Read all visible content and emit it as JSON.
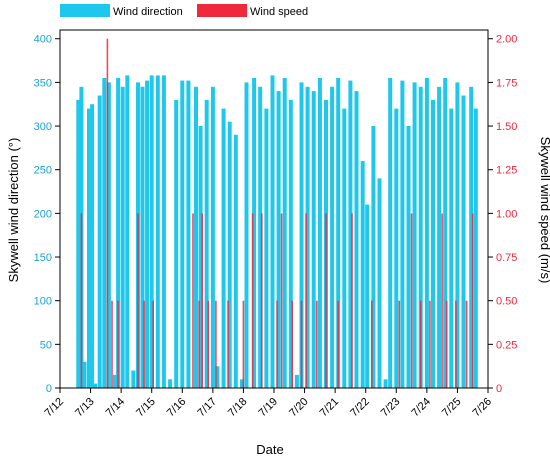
{
  "chart_data": {
    "type": "bar",
    "xlabel": "Date",
    "ylabel_left": "Skywell wind direction (°)",
    "ylabel_right": "Skywell wind speed  (m/s)",
    "x_ticks": [
      "7/12",
      "7/13",
      "7/14",
      "7/15",
      "7/16",
      "7/17",
      "7/18",
      "7/19",
      "7/20",
      "7/21",
      "7/22",
      "7/23",
      "7/24",
      "7/25",
      "7/26"
    ],
    "xlim": [
      "7/12",
      "7/26"
    ],
    "ylim_left": [
      0,
      410
    ],
    "ylim_right": [
      0,
      2.05
    ],
    "y_ticks_left": [
      "0",
      "50",
      "100",
      "150",
      "200",
      "250",
      "300",
      "350",
      "400"
    ],
    "y_ticks_right": [
      "0",
      "0.25",
      "0.50",
      "0.75",
      "1.00",
      "1.25",
      "1.50",
      "1.75",
      "2.00"
    ],
    "legend": {
      "placement": "top-left",
      "entries": [
        "Wind direction",
        "Wind speed"
      ]
    },
    "colors": {
      "direction": "#1ec8ec",
      "speed": "#f0283c",
      "left_axis": "#1aa3d4",
      "right_axis": "#e8213a"
    },
    "series": [
      {
        "name": "Wind direction",
        "axis": "left",
        "points": [
          {
            "date": "7/12.60",
            "value": 330
          },
          {
            "date": "7/12.70",
            "value": 345
          },
          {
            "date": "7/12.80",
            "value": 30
          },
          {
            "date": "7/12.95",
            "value": 320
          },
          {
            "date": "7/13.05",
            "value": 325
          },
          {
            "date": "7/13.15",
            "value": 5
          },
          {
            "date": "7/13.30",
            "value": 335
          },
          {
            "date": "7/13.45",
            "value": 355
          },
          {
            "date": "7/13.60",
            "value": 350
          },
          {
            "date": "7/13.80",
            "value": 15
          },
          {
            "date": "7/13.90",
            "value": 355
          },
          {
            "date": "7/14.05",
            "value": 345
          },
          {
            "date": "7/14.20",
            "value": 358
          },
          {
            "date": "7/14.40",
            "value": 20
          },
          {
            "date": "7/14.55",
            "value": 350
          },
          {
            "date": "7/14.70",
            "value": 345
          },
          {
            "date": "7/14.85",
            "value": 352
          },
          {
            "date": "7/15.00",
            "value": 358
          },
          {
            "date": "7/15.20",
            "value": 358
          },
          {
            "date": "7/15.40",
            "value": 358
          },
          {
            "date": "7/15.60",
            "value": 10
          },
          {
            "date": "7/15.80",
            "value": 330
          },
          {
            "date": "7/16.00",
            "value": 352
          },
          {
            "date": "7/16.20",
            "value": 352
          },
          {
            "date": "7/16.45",
            "value": 345
          },
          {
            "date": "7/16.60",
            "value": 300
          },
          {
            "date": "7/16.80",
            "value": 330
          },
          {
            "date": "7/17.00",
            "value": 345
          },
          {
            "date": "7/17.15",
            "value": 25
          },
          {
            "date": "7/17.35",
            "value": 320
          },
          {
            "date": "7/17.55",
            "value": 305
          },
          {
            "date": "7/17.75",
            "value": 290
          },
          {
            "date": "7/17.95",
            "value": 10
          },
          {
            "date": "7/18.10",
            "value": 350
          },
          {
            "date": "7/18.35",
            "value": 355
          },
          {
            "date": "7/18.55",
            "value": 345
          },
          {
            "date": "7/18.75",
            "value": 320
          },
          {
            "date": "7/18.95",
            "value": 358
          },
          {
            "date": "7/19.15",
            "value": 340
          },
          {
            "date": "7/19.35",
            "value": 355
          },
          {
            "date": "7/19.55",
            "value": 330
          },
          {
            "date": "7/19.75",
            "value": 15
          },
          {
            "date": "7/19.90",
            "value": 350
          },
          {
            "date": "7/20.10",
            "value": 345
          },
          {
            "date": "7/20.30",
            "value": 340
          },
          {
            "date": "7/20.50",
            "value": 355
          },
          {
            "date": "7/20.70",
            "value": 330
          },
          {
            "date": "7/20.90",
            "value": 345
          },
          {
            "date": "7/21.10",
            "value": 355
          },
          {
            "date": "7/21.30",
            "value": 320
          },
          {
            "date": "7/21.50",
            "value": 352
          },
          {
            "date": "7/21.70",
            "value": 340
          },
          {
            "date": "7/21.90",
            "value": 260
          },
          {
            "date": "7/22.05",
            "value": 210
          },
          {
            "date": "7/22.25",
            "value": 300
          },
          {
            "date": "7/22.45",
            "value": 240
          },
          {
            "date": "7/22.65",
            "value": 10
          },
          {
            "date": "7/22.80",
            "value": 355
          },
          {
            "date": "7/23.00",
            "value": 320
          },
          {
            "date": "7/23.20",
            "value": 352
          },
          {
            "date": "7/23.40",
            "value": 300
          },
          {
            "date": "7/23.60",
            "value": 350
          },
          {
            "date": "7/23.80",
            "value": 345
          },
          {
            "date": "7/24.00",
            "value": 355
          },
          {
            "date": "7/24.20",
            "value": 330
          },
          {
            "date": "7/24.40",
            "value": 345
          },
          {
            "date": "7/24.60",
            "value": 355
          },
          {
            "date": "7/24.80",
            "value": 320
          },
          {
            "date": "7/25.00",
            "value": 350
          },
          {
            "date": "7/25.20",
            "value": 335
          },
          {
            "date": "7/25.45",
            "value": 345
          },
          {
            "date": "7/25.60",
            "value": 320
          }
        ]
      },
      {
        "name": "Wind speed",
        "axis": "right",
        "points": [
          {
            "date": "7/12.70",
            "value": 1.0
          },
          {
            "date": "7/13.55",
            "value": 2.0
          },
          {
            "date": "7/13.70",
            "value": 0.5
          },
          {
            "date": "7/13.90",
            "value": 0.5
          },
          {
            "date": "7/14.55",
            "value": 1.0
          },
          {
            "date": "7/14.75",
            "value": 0.5
          },
          {
            "date": "7/15.05",
            "value": 0.5
          },
          {
            "date": "7/16.35",
            "value": 1.0
          },
          {
            "date": "7/16.55",
            "value": 0.5
          },
          {
            "date": "7/16.65",
            "value": 1.0
          },
          {
            "date": "7/16.85",
            "value": 0.5
          },
          {
            "date": "7/17.10",
            "value": 0.5
          },
          {
            "date": "7/17.50",
            "value": 0.5
          },
          {
            "date": "7/18.00",
            "value": 0.5
          },
          {
            "date": "7/18.30",
            "value": 1.0
          },
          {
            "date": "7/18.60",
            "value": 1.0
          },
          {
            "date": "7/19.10",
            "value": 0.5
          },
          {
            "date": "7/19.25",
            "value": 1.0
          },
          {
            "date": "7/19.60",
            "value": 0.5
          },
          {
            "date": "7/19.90",
            "value": 0.5
          },
          {
            "date": "7/20.05",
            "value": 1.0
          },
          {
            "date": "7/20.40",
            "value": 0.5
          },
          {
            "date": "7/20.70",
            "value": 1.0
          },
          {
            "date": "7/21.10",
            "value": 0.5
          },
          {
            "date": "7/21.55",
            "value": 1.0
          },
          {
            "date": "7/22.20",
            "value": 0.5
          },
          {
            "date": "7/23.10",
            "value": 0.5
          },
          {
            "date": "7/23.50",
            "value": 1.0
          },
          {
            "date": "7/23.80",
            "value": 0.5
          },
          {
            "date": "7/24.10",
            "value": 0.5
          },
          {
            "date": "7/24.50",
            "value": 1.0
          },
          {
            "date": "7/24.65",
            "value": 0.5
          },
          {
            "date": "7/24.95",
            "value": 0.5
          },
          {
            "date": "7/25.30",
            "value": 0.5
          },
          {
            "date": "7/25.50",
            "value": 1.0
          }
        ]
      }
    ]
  }
}
